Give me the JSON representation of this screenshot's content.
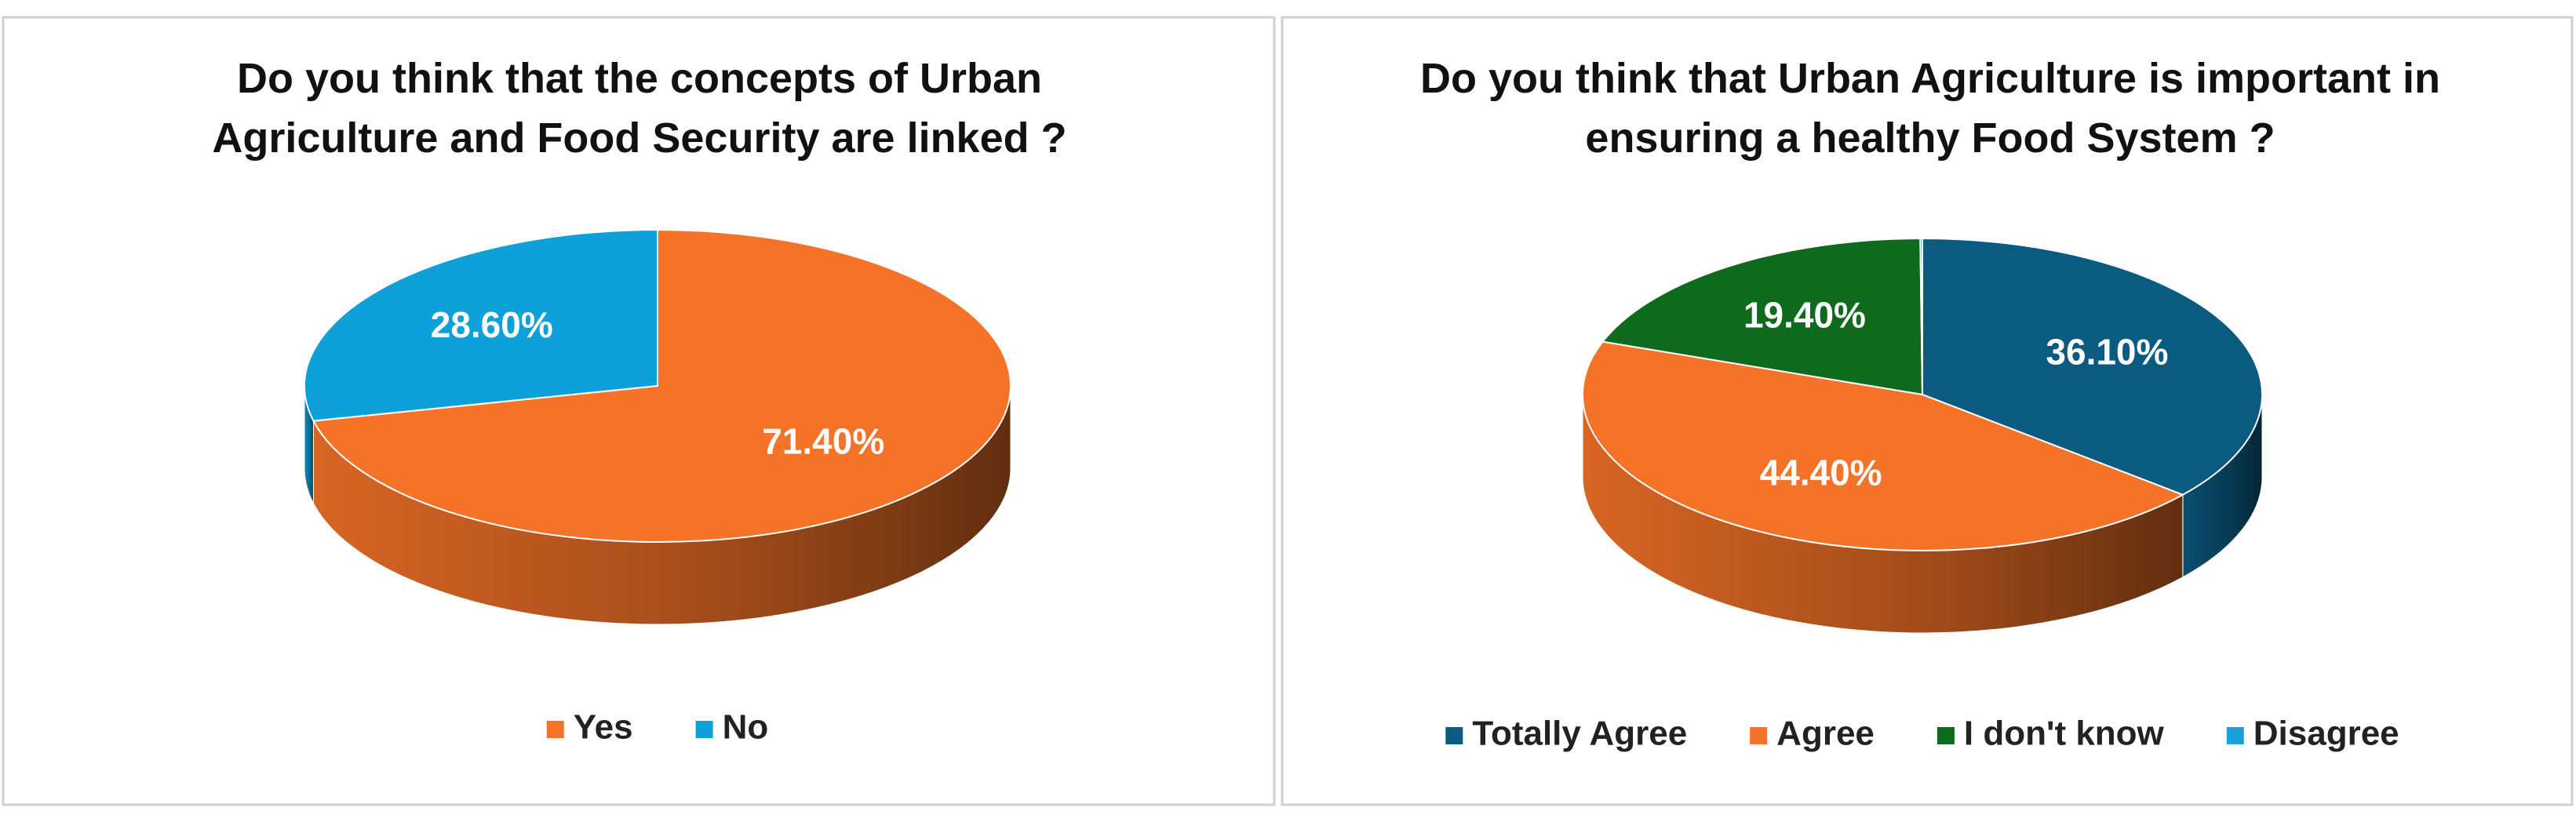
{
  "chart_data": [
    {
      "type": "pie",
      "title": "Do you think that the concepts of Urban Agriculture and Food Security are linked ?",
      "categories": [
        "Yes",
        "No"
      ],
      "values": [
        71.4,
        28.6
      ],
      "value_labels": [
        "71.40%",
        "28.60%"
      ],
      "colors": [
        "#f57328",
        "#0ea0d8"
      ]
    },
    {
      "type": "pie",
      "title": "Do you think that Urban Agriculture is important in ensuring a healthy Food System ?",
      "categories": [
        "Totally Agree",
        "Agree",
        "I don't know",
        "Disagree"
      ],
      "values": [
        36.1,
        44.4,
        19.4,
        0.1
      ],
      "value_labels": [
        "36.10%",
        "44.40%",
        "19.40%",
        null
      ],
      "colors": [
        "#0b5a80",
        "#f57328",
        "#0e6b1e",
        "#1ba0d8"
      ]
    }
  ]
}
